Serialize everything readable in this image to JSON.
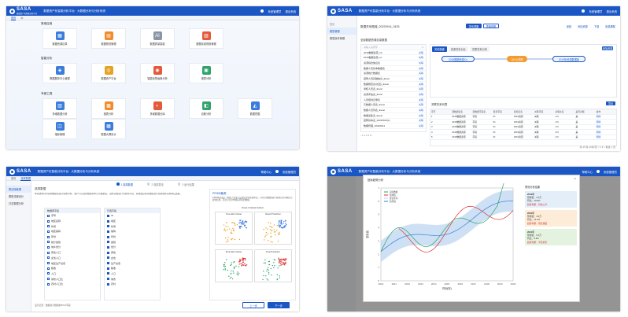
{
  "app": {
    "logo": "SASA",
    "logo_sub": "数据资产化智能分析平台",
    "system_title": "数据资产化智能分析平台 · 大数据分析与分析系统",
    "user_name": "系统管理员",
    "logout": "退出系统",
    "help": "帮助中心",
    "home": "首页"
  },
  "p1": {
    "tabs": [
      "首页",
      "AI"
    ],
    "sections": [
      "常用应用",
      "智能分析",
      "专家工具"
    ],
    "cards": [
      [
        {
          "label": "数据资源目录",
          "icon": "▦",
          "color": "#3b7ddd"
        },
        {
          "label": "数据规范管理",
          "icon": "▤",
          "color": "#f08c2c"
        },
        {
          "label": "数据质量智能",
          "icon": "AI",
          "color": "#8a95a8"
        },
        {
          "label": "数据标准规则管理",
          "icon": "▧",
          "color": "#e45a3a"
        }
      ],
      [
        {
          "label": "数据服务中心管理",
          "icon": "◈",
          "color": "#3b7ddd"
        },
        {
          "label": "数据资产平台",
          "icon": "◎",
          "color": "#e6a224"
        },
        {
          "label": "智能标签画像分析",
          "icon": "◉",
          "color": "#e45a3a"
        },
        {
          "label": "报表分析",
          "icon": "▣",
          "color": "#2fa36b"
        }
      ],
      [
        {
          "label": "多维数据分析",
          "icon": "▥",
          "color": "#3b7ddd"
        },
        {
          "label": "报表分析",
          "icon": "▩",
          "color": "#f08c2c"
        },
        {
          "label": "多维数据仓库",
          "icon": "◐",
          "color": "#e45a3a"
        },
        {
          "label": "自助分析",
          "icon": "◧",
          "color": "#2fa36b"
        },
        {
          "label": "数据挖掘",
          "icon": "◭",
          "color": "#3b7ddd"
        }
      ],
      [
        {
          "label": "指标管理",
          "icon": "◫",
          "color": "#3b7ddd"
        },
        {
          "label": "数据大屏设计",
          "icon": "▦",
          "color": "#3b7ddd"
        }
      ]
    ]
  },
  "p2": {
    "sidebar": [
      "模型管理",
      "模型版本管理"
    ],
    "title": "数据关系图谱_20220914_0433",
    "toggle": [
      "关系视图",
      "表格视图"
    ],
    "actions": [
      "返回",
      "添加资源",
      "下载",
      "批量删除"
    ],
    "list_title": "全部数据资源目录数据",
    "search_placeholder": "请输入关键字",
    "op": "关联",
    "rows": [
      "2018数据资源_Cn",
      "2019数据资源_ex",
      "资源综合信息表",
      "数据人员基本数据表",
      "资源统计数据表",
      "招聘人员基础信息_Excel",
      "数据规范表(省直)_Excel",
      "考核人员表_Excel",
      "资源评估表_Excel",
      "人员培训记录表",
      "元数据人员表_Excel",
      "数据人员列表_Excel",
      "数据采集表_Excel",
      "招聘基本表_20220914(1)",
      "数据管理_20220914"
    ],
    "view_tabs": [
      "关系图谱",
      "资源关系对比",
      "关联关系分析"
    ],
    "flow_nodes": [
      "2018数据资源Cn",
      "1(N:1)关联",
      "2019年资源数据库"
    ],
    "table_title": "关联关系列表",
    "table_btn": "导出",
    "table_headers": [
      "序号",
      "源数据表名",
      "源数据字段名",
      "目标字段",
      "目标表名",
      "关联字段",
      "关联关系",
      "是否关联",
      "操作"
    ],
    "table_rows": [
      [
        "1",
        "2018数据资源",
        "字段",
        "ID",
        "2019资源",
        "关联",
        "1:N",
        "是",
        "删除"
      ],
      [
        "2",
        "2018数据资源",
        "字段",
        "ID",
        "2019资源",
        "关联",
        "1:N",
        "是",
        "删除"
      ],
      [
        "3",
        "2018数据资源",
        "字段",
        "ID",
        "2019资源",
        "关联",
        "1:N",
        "是",
        "删除"
      ],
      [
        "4",
        "2018数据资源",
        "字段",
        "ID",
        "2019资源",
        "关联",
        "1:N",
        "是",
        "删除"
      ],
      [
        "5",
        "2018数据资源",
        "字段",
        "ID",
        "2019资源",
        "关联",
        "1:N",
        "是",
        "删除"
      ]
    ],
    "pagination": "共 15 条   10条/页   < 1 2 >   前往 1 页"
  },
  "p3": {
    "sidebar": [
      "算法库管理",
      "模型流程设计",
      "日志数据分析"
    ],
    "section": "选择数据",
    "steps": [
      "1 选择数据",
      "2 选择算法",
      "3 运行结果"
    ],
    "desc": "本系统支持对多种数据源进行聚类分析，用户可以选择数据库中已有数据表，选择需要进行分析的字段，系统会自动对数据进行预处理并完成特征选取。",
    "left_title": "数据库字段",
    "right_title": "已选字段",
    "fields_left": [
      "序号",
      "地区名称",
      "时间",
      "地区编码",
      "年份",
      "统计类别",
      "城乡划分",
      "男性人口",
      "女性人口",
      "地区生产总值",
      "税收",
      "人口",
      "城市人口比",
      "农村人口比"
    ],
    "fields_right": [
      "ID",
      "地区",
      "时间",
      "编码",
      "年份",
      "类别",
      "划分",
      "男性",
      "女性",
      "生产总值",
      "税收",
      "人口",
      "城市",
      "农村"
    ],
    "algo_title": "PRISM聚类",
    "algo_desc": "PRISM算法是一种基于密度与层次结合的聚类算法，可对高维数据进行聚类分析并输出可视化结果，适合空间分布特征明显的数据。",
    "algo_sub": "Visual of Global Solution",
    "plot_titles": [
      "True label Cluster",
      "Result Prediction",
      "Pred label Cluster",
      "Final Prediction"
    ],
    "footer": "显示记录：数据总计规模的5%%字段",
    "prev": "上一步",
    "next": "下一步"
  },
  "p4": {
    "modal_title": "指标趋势分析",
    "x_label": "时间(年)",
    "y_label": "指标值",
    "legend": [
      "实际数据",
      "预测值",
      "置信区间",
      "趋势线"
    ],
    "x_ticks": [
      "2010",
      "2011",
      "2012",
      "2013",
      "2014",
      "2015",
      "2016",
      "2017",
      "2018",
      "2019",
      "2020"
    ],
    "y_ticks": [
      "0",
      "1",
      "2",
      "3",
      "4",
      "5",
      "6",
      "7"
    ],
    "info_title": "预测分析结果",
    "info_cards": [
      {
        "title": "2019年",
        "line1": "预测值：4.3万",
        "line2": "同比：10.8%",
        "line3": "趋势判断：持续上升",
        "bg": "#e3eef9"
      },
      {
        "title": "2020年",
        "line1": "预测值：4.9万",
        "line2": "同比：11.2%",
        "line3": "趋势判断：增长放缓",
        "bg": "#fdecd7"
      },
      {
        "title": "2021年",
        "line1": "预测值：5.4万",
        "line2": "同比：9.6%",
        "line3": "趋势判断：平稳增长",
        "bg": "#e4f3e0"
      }
    ]
  }
}
